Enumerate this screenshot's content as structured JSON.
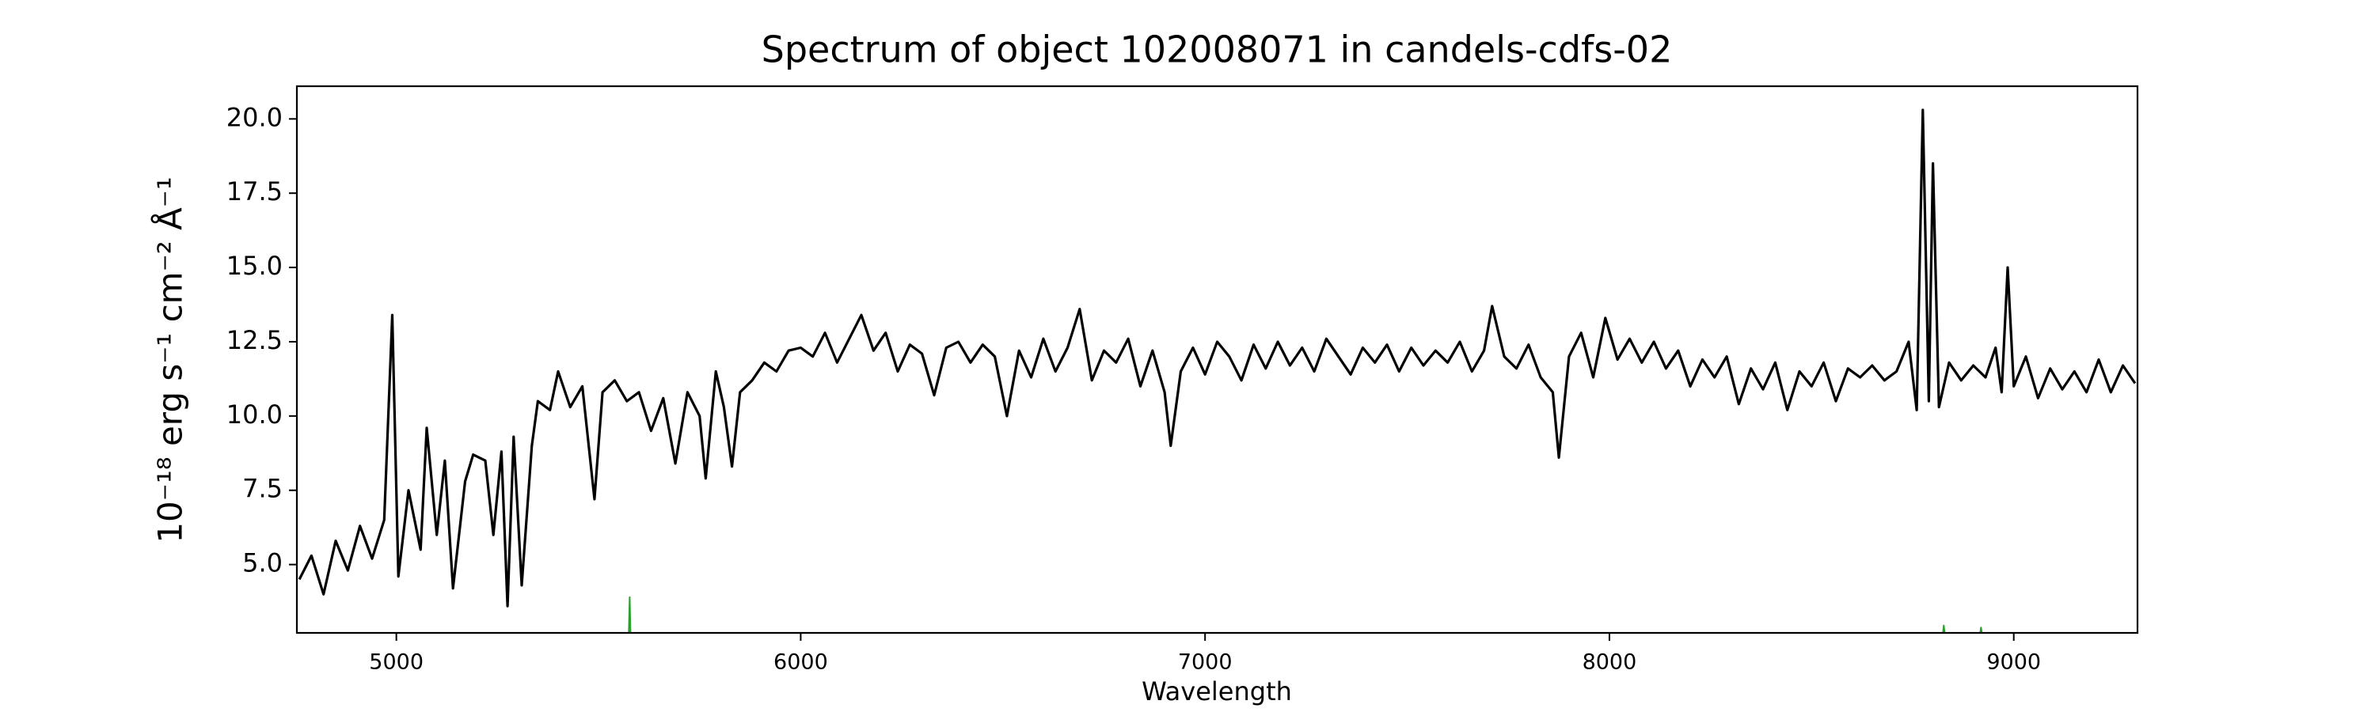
{
  "chart_data": {
    "type": "line",
    "title": "Spectrum of object 102008071 in candels-cdfs-02",
    "xlabel": "Wavelength",
    "ylabel": "10⁻¹⁸ erg s⁻¹ cm⁻² Å⁻¹",
    "xlim": [
      4754,
      9306
    ],
    "ylim": [
      2.7,
      21.1
    ],
    "xticks": [
      5000,
      6000,
      7000,
      8000,
      9000
    ],
    "yticks": [
      {
        "value": 5,
        "label": "5.0"
      },
      {
        "value": 7.5,
        "label": "7.5"
      },
      {
        "value": 10,
        "label": "10.0"
      },
      {
        "value": 12.5,
        "label": "12.5"
      },
      {
        "value": 15,
        "label": "15.0"
      },
      {
        "value": 17.5,
        "label": "17.5"
      },
      {
        "value": 20,
        "label": "20.0"
      }
    ],
    "series": [
      {
        "color": "#000000",
        "x": [
          4760,
          4790,
          4820,
          4850,
          4880,
          4910,
          4940,
          4970,
          4990,
          5005,
          5030,
          5060,
          5075,
          5100,
          5120,
          5140,
          5170,
          5190,
          5220,
          5240,
          5260,
          5275,
          5290,
          5310,
          5335,
          5350,
          5380,
          5400,
          5430,
          5460,
          5490,
          5510,
          5540,
          5570,
          5600,
          5630,
          5660,
          5690,
          5720,
          5750,
          5765,
          5790,
          5810,
          5830,
          5850,
          5880,
          5910,
          5940,
          5970,
          6000,
          6030,
          6060,
          6090,
          6120,
          6150,
          6180,
          6210,
          6240,
          6270,
          6300,
          6330,
          6360,
          6390,
          6420,
          6450,
          6480,
          6510,
          6540,
          6570,
          6600,
          6630,
          6660,
          6690,
          6720,
          6750,
          6780,
          6810,
          6840,
          6870,
          6900,
          6915,
          6940,
          6970,
          7000,
          7030,
          7060,
          7090,
          7120,
          7150,
          7180,
          7210,
          7240,
          7270,
          7300,
          7330,
          7360,
          7390,
          7420,
          7450,
          7480,
          7510,
          7540,
          7570,
          7600,
          7630,
          7660,
          7690,
          7710,
          7740,
          7770,
          7800,
          7830,
          7860,
          7875,
          7900,
          7930,
          7960,
          7990,
          8020,
          8050,
          8080,
          8110,
          8140,
          8170,
          8200,
          8230,
          8260,
          8290,
          8320,
          8350,
          8380,
          8410,
          8440,
          8470,
          8500,
          8530,
          8560,
          8590,
          8620,
          8650,
          8680,
          8710,
          8740,
          8760,
          8775,
          8790,
          8800,
          8815,
          8840,
          8870,
          8900,
          8930,
          8955,
          8970,
          8985,
          9000,
          9030,
          9060,
          9090,
          9120,
          9150,
          9180,
          9210,
          9240,
          9270,
          9300
        ],
        "values": [
          4.5,
          5.3,
          4.0,
          5.8,
          4.8,
          6.3,
          5.2,
          6.5,
          13.4,
          4.6,
          7.5,
          5.5,
          9.6,
          6.0,
          8.5,
          4.2,
          7.8,
          8.7,
          8.5,
          6.0,
          8.8,
          3.6,
          9.3,
          4.3,
          9.0,
          10.5,
          10.2,
          11.5,
          10.3,
          11.0,
          7.2,
          10.8,
          11.2,
          10.5,
          10.8,
          9.5,
          10.6,
          8.4,
          10.8,
          10.0,
          7.9,
          11.5,
          10.3,
          8.3,
          10.8,
          11.2,
          11.8,
          11.5,
          12.2,
          12.3,
          12.0,
          12.8,
          11.8,
          12.6,
          13.4,
          12.2,
          12.8,
          11.5,
          12.4,
          12.1,
          10.7,
          12.3,
          12.5,
          11.8,
          12.4,
          12.0,
          10.0,
          12.2,
          11.3,
          12.6,
          11.5,
          12.3,
          13.6,
          11.2,
          12.2,
          11.8,
          12.6,
          11.0,
          12.2,
          10.8,
          9.0,
          11.5,
          12.3,
          11.4,
          12.5,
          12.0,
          11.2,
          12.4,
          11.6,
          12.5,
          11.7,
          12.3,
          11.5,
          12.6,
          12.0,
          11.4,
          12.3,
          11.8,
          12.4,
          11.5,
          12.3,
          11.7,
          12.2,
          11.8,
          12.5,
          11.5,
          12.2,
          13.7,
          12.0,
          11.6,
          12.4,
          11.3,
          10.8,
          8.6,
          12.0,
          12.8,
          11.3,
          13.3,
          11.9,
          12.6,
          11.8,
          12.5,
          11.6,
          12.2,
          11.0,
          11.9,
          11.3,
          12.0,
          10.4,
          11.6,
          10.9,
          11.8,
          10.2,
          11.5,
          11.0,
          11.8,
          10.5,
          11.6,
          11.3,
          11.7,
          11.2,
          11.5,
          12.5,
          10.2,
          20.3,
          10.5,
          18.5,
          10.3,
          11.8,
          11.2,
          11.7,
          11.3,
          12.3,
          10.8,
          15.0,
          11.0,
          12.0,
          10.6,
          11.6,
          10.9,
          11.5,
          10.8,
          11.9,
          10.8,
          11.7,
          11.1
        ]
      },
      {
        "color": "#2ca02c",
        "x": [
          4754,
          5575,
          5577,
          5579,
          8825,
          8827,
          8829,
          8917,
          8919,
          8921,
          9306
        ],
        "values": [
          2.7,
          2.7,
          3.9,
          2.7,
          2.7,
          2.95,
          2.7,
          2.7,
          2.88,
          2.7,
          2.7
        ]
      }
    ]
  }
}
